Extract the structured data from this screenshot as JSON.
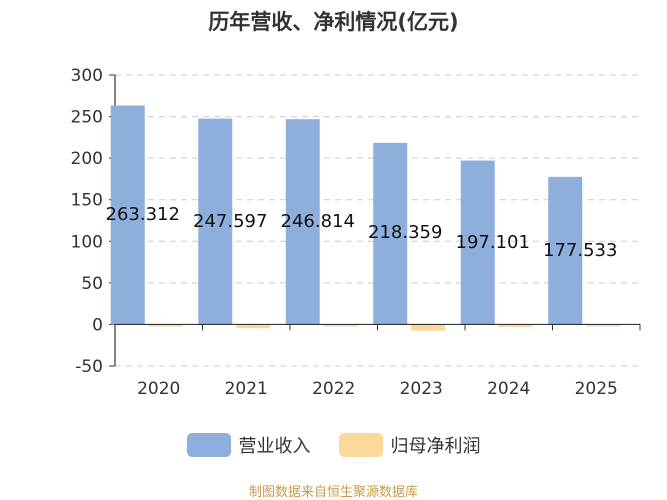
{
  "chart_data": {
    "type": "bar",
    "title": "历年营收、净利情况(亿元)",
    "categories": [
      "2020",
      "2021",
      "2022",
      "2023",
      "2024",
      "2025"
    ],
    "series": [
      {
        "name": "营业收入",
        "color": "#8eaedc",
        "values": [
          263.312,
          247.597,
          246.814,
          218.359,
          197.101,
          177.533
        ],
        "labels": [
          "263.312",
          "247.597",
          "246.814",
          "218.359",
          "197.101",
          "177.533"
        ]
      },
      {
        "name": "归母净利润",
        "color": "#fcd89a",
        "values": [
          -2.5,
          -4.5,
          -1.0,
          -7.5,
          -3.0,
          -1.5
        ]
      }
    ],
    "ylim": [
      -50,
      300
    ],
    "yticks": [
      -50,
      0,
      50,
      100,
      150,
      200,
      250,
      300
    ],
    "ytick_labels": [
      "-50",
      "0",
      "50",
      "100",
      "150",
      "200",
      "250",
      "300"
    ],
    "grid": true,
    "legend_position": "bottom"
  },
  "source_note": "制图数据来自恒生聚源数据库"
}
